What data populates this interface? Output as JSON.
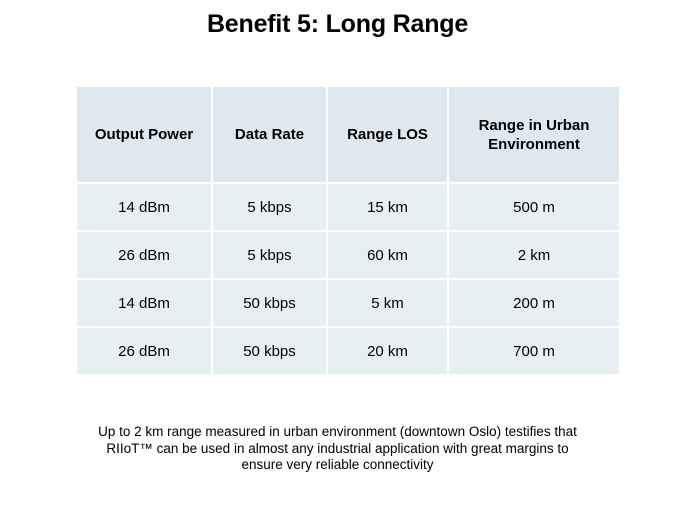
{
  "title": "Benefit 5: Long Range",
  "table": {
    "headers": [
      "Output Power",
      "Data Rate",
      "Range LOS",
      "Range in Urban Environment"
    ],
    "rows": [
      [
        "14 dBm",
        "5 kbps",
        "15 km",
        "500 m"
      ],
      [
        "26 dBm",
        "5 kbps",
        "60 km",
        "2 km"
      ],
      [
        "14 dBm",
        "50 kbps",
        "5 km",
        "200 m"
      ],
      [
        "26 dBm",
        "50 kbps",
        "20 km",
        "700 m"
      ]
    ]
  },
  "footnote": {
    "lines": [
      "Up to 2 km range measured in urban environment (downtown Oslo) testifies that",
      "RIIoT™ can be used in almost any industrial application with great margins to",
      "ensure very reliable  connectivity"
    ]
  },
  "colors": {
    "header_fill": "#dfe8ee",
    "body_fill": "#e8eff3"
  }
}
